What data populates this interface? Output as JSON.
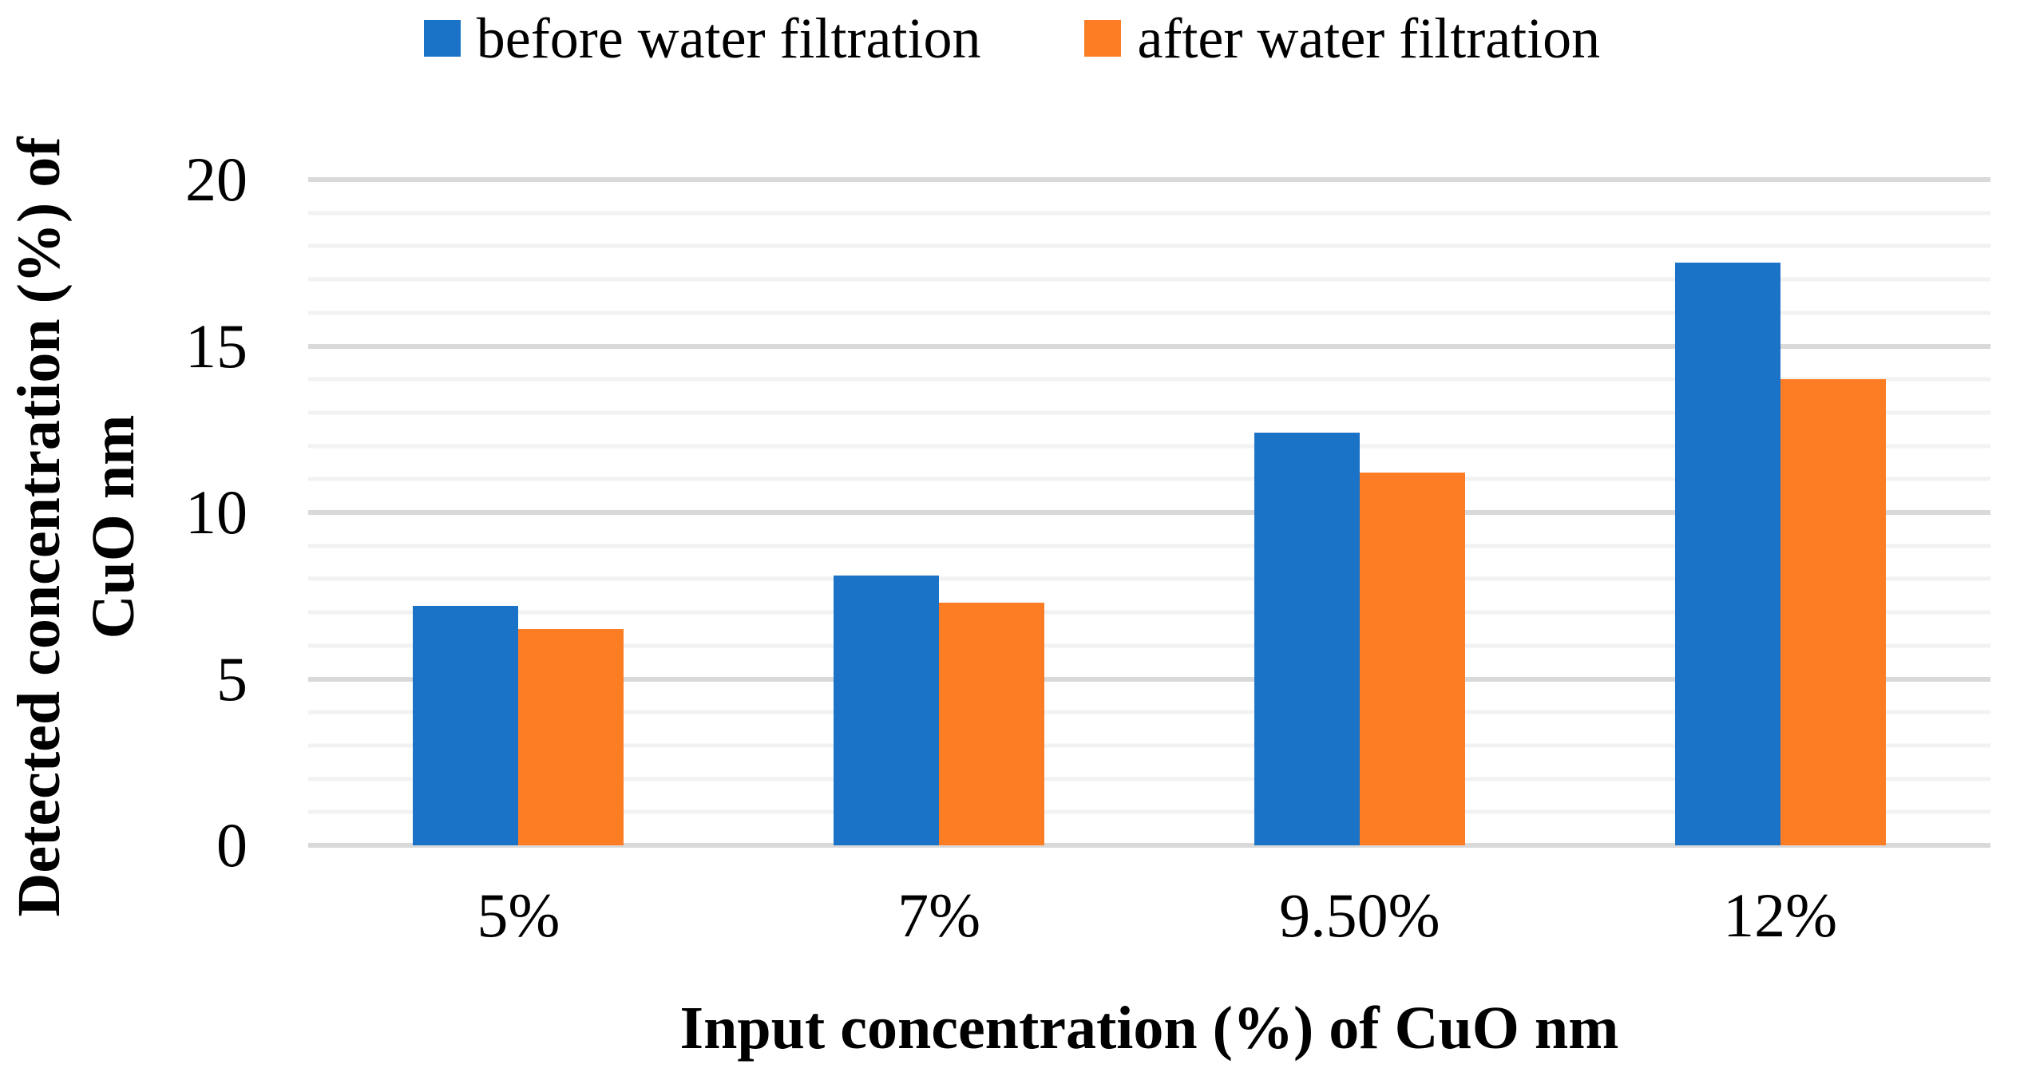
{
  "chart_data": {
    "type": "bar",
    "categories": [
      "5%",
      "7%",
      "9.50%",
      "12%"
    ],
    "series": [
      {
        "name": "before water filtration",
        "color": "#1B73C7",
        "values": [
          7.2,
          8.1,
          12.4,
          17.5
        ]
      },
      {
        "name": "after water filtration",
        "color": "#FD7D25",
        "values": [
          6.5,
          7.3,
          11.2,
          14
        ]
      }
    ],
    "xlabel": "Input concentration (%) of CuO nm",
    "ylabel": "Detected concentration (%) of CuO nm",
    "y_title_lines": [
      "Detected concentration (%) of",
      "CuO nm"
    ],
    "yticks": [
      0,
      5,
      10,
      15,
      20
    ],
    "ylim": [
      0,
      20
    ],
    "y_major_step": 5,
    "y_minor_step": 1,
    "grid": "horizontal, major and minor",
    "legend_position": "top-center",
    "gridline_major_color": "#D9D9D9",
    "gridline_minor_color": "#F2F2F2",
    "background_color": "#FFFFFF"
  }
}
